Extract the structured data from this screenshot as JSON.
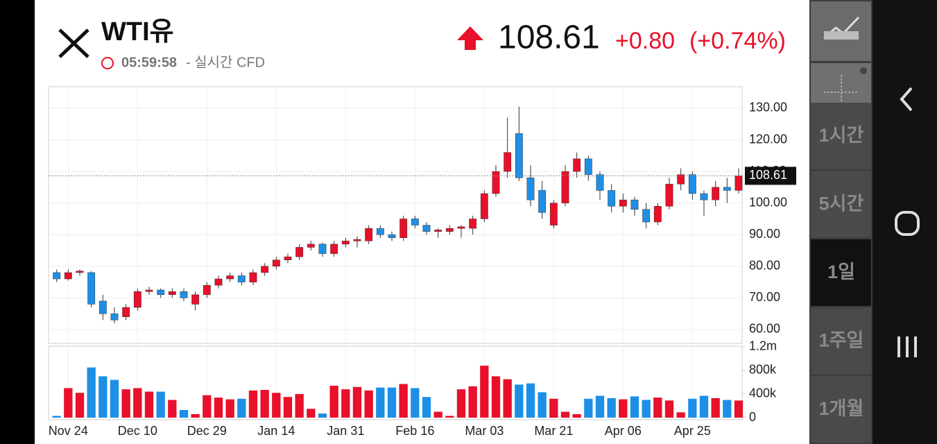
{
  "header": {
    "title": "WTI유",
    "time": "05:59:58",
    "source": "- 실시간 CFD",
    "change": "+0.80",
    "change_pct": "(+0.74%)"
  },
  "timeframes": [
    "1시간",
    "5시간",
    "1일",
    "1주일",
    "1개월"
  ],
  "chart_data": {
    "type": "candlestick",
    "price": 108.61,
    "up_color": "#e8102a",
    "down_color": "#1e8fe6",
    "xlim": [
      -0.7,
      59.3
    ],
    "xticks": [
      {
        "value": 1,
        "label": "Nov 24"
      },
      {
        "value": 7,
        "label": "Dec 10"
      },
      {
        "value": 13,
        "label": "Dec 29"
      },
      {
        "value": 19,
        "label": "Jan 14"
      },
      {
        "value": 25,
        "label": "Jan 31"
      },
      {
        "value": 31,
        "label": "Feb 16"
      },
      {
        "value": 37,
        "label": "Mar 03"
      },
      {
        "value": 43,
        "label": "Mar 21"
      },
      {
        "value": 49,
        "label": "Apr 06"
      },
      {
        "value": 55,
        "label": "Apr 25"
      }
    ],
    "ylim": [
      55.6,
      136.8
    ],
    "yticks": [
      {
        "value": 60,
        "label": "60.00"
      },
      {
        "value": 70,
        "label": "70.00"
      },
      {
        "value": 80,
        "label": "80.00"
      },
      {
        "value": 90,
        "label": "90.00"
      },
      {
        "value": 100,
        "label": "100.00"
      },
      {
        "value": 110,
        "label": "110.00"
      },
      {
        "value": 120,
        "label": "120.00"
      },
      {
        "value": 130,
        "label": "130.00"
      }
    ],
    "candles": [
      [
        78,
        79,
        75,
        76
      ],
      [
        76,
        79,
        75.5,
        78
      ],
      [
        78,
        79,
        77,
        78.5
      ],
      [
        78,
        78.5,
        67,
        68
      ],
      [
        69,
        71,
        63,
        65
      ],
      [
        65,
        67,
        62,
        63
      ],
      [
        64,
        68,
        63,
        67
      ],
      [
        67,
        73,
        66,
        72
      ],
      [
        72,
        73.5,
        71,
        72.5
      ],
      [
        72.5,
        73,
        70,
        71
      ],
      [
        71,
        73,
        70,
        72
      ],
      [
        72,
        73,
        69,
        70
      ],
      [
        68,
        72,
        66,
        71
      ],
      [
        71,
        75,
        70,
        74
      ],
      [
        74,
        77,
        73,
        76
      ],
      [
        76,
        78,
        75,
        77
      ],
      [
        77,
        78,
        74,
        75
      ],
      [
        75,
        79,
        74,
        78
      ],
      [
        78,
        81,
        77,
        80
      ],
      [
        80,
        83,
        79,
        82
      ],
      [
        82,
        84,
        81,
        83
      ],
      [
        83,
        87,
        82,
        86
      ],
      [
        86,
        88,
        85,
        87
      ],
      [
        87,
        87.5,
        83,
        84
      ],
      [
        84,
        88,
        83,
        87
      ],
      [
        87,
        89,
        86,
        88
      ],
      [
        88,
        89.5,
        86,
        88.5
      ],
      [
        88,
        93,
        87,
        92
      ],
      [
        92,
        93,
        89,
        90
      ],
      [
        90,
        91,
        88,
        89
      ],
      [
        89,
        96,
        88,
        95
      ],
      [
        95,
        96,
        92,
        93
      ],
      [
        93,
        94,
        90,
        91
      ],
      [
        91,
        92,
        89,
        91.5
      ],
      [
        91,
        93,
        90,
        92
      ],
      [
        92,
        93,
        89,
        92.5
      ],
      [
        92,
        96,
        90,
        95
      ],
      [
        95,
        104,
        94,
        103
      ],
      [
        103,
        112,
        102,
        110
      ],
      [
        110,
        127,
        108,
        116
      ],
      [
        122,
        130.5,
        107,
        108
      ],
      [
        108,
        112,
        99,
        101
      ],
      [
        104,
        107,
        95,
        97
      ],
      [
        93,
        101,
        92,
        100
      ],
      [
        100,
        112,
        99,
        110
      ],
      [
        110,
        116,
        108,
        114
      ],
      [
        114,
        115,
        107,
        109
      ],
      [
        109,
        110,
        101,
        104
      ],
      [
        104,
        106,
        97,
        99
      ],
      [
        99,
        103,
        97,
        101
      ],
      [
        101,
        102,
        96,
        98
      ],
      [
        98,
        100,
        92,
        94
      ],
      [
        94,
        100,
        93,
        99
      ],
      [
        99,
        108,
        98,
        106
      ],
      [
        106,
        111,
        104,
        109
      ],
      [
        109,
        110,
        101,
        103
      ],
      [
        103,
        104,
        96,
        101
      ],
      [
        101,
        107,
        99,
        105
      ],
      [
        105,
        108,
        100,
        104
      ],
      [
        104,
        111,
        103,
        108.61
      ]
    ],
    "volume": [
      30000,
      500000,
      420000,
      850000,
      700000,
      640000,
      480000,
      500000,
      440000,
      440000,
      300000,
      130000,
      60000,
      380000,
      340000,
      310000,
      320000,
      460000,
      470000,
      420000,
      350000,
      400000,
      150000,
      70000,
      540000,
      480000,
      520000,
      460000,
      510000,
      510000,
      570000,
      500000,
      350000,
      100000,
      30000,
      480000,
      530000,
      880000,
      700000,
      650000,
      560000,
      580000,
      430000,
      320000,
      100000,
      60000,
      320000,
      370000,
      330000,
      310000,
      360000,
      300000,
      340000,
      290000,
      90000,
      320000,
      370000,
      330000,
      300000,
      290000
    ],
    "vlim": [
      -35000,
      1210000
    ],
    "vticks": [
      {
        "value": 0,
        "label": "0"
      },
      {
        "value": 400000,
        "label": "400k"
      },
      {
        "value": 800000,
        "label": "800k"
      },
      {
        "value": 1200000,
        "label": "1.2m"
      }
    ]
  }
}
